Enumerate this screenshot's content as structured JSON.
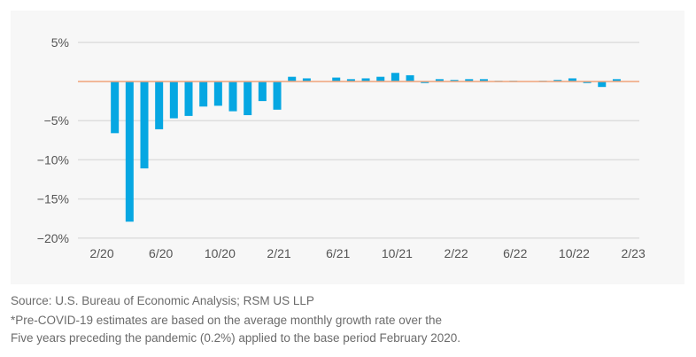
{
  "chart_data": {
    "type": "bar",
    "title": "",
    "xlabel": "",
    "ylabel": "",
    "ylim": [
      -20,
      5
    ],
    "yticks": [
      5,
      0,
      -5,
      -10,
      -15,
      -20
    ],
    "ytick_labels": [
      "5%",
      "",
      "−5%",
      "−10%",
      "−15%",
      "−20%"
    ],
    "grid": true,
    "categories": [
      "2/20",
      "3/20",
      "4/20",
      "5/20",
      "6/20",
      "7/20",
      "8/20",
      "9/20",
      "10/20",
      "11/20",
      "12/20",
      "1/21",
      "2/21",
      "3/21",
      "4/21",
      "5/21",
      "6/21",
      "7/21",
      "8/21",
      "9/21",
      "10/21",
      "11/21",
      "12/21",
      "1/22",
      "2/22",
      "3/22",
      "4/22",
      "5/22",
      "6/22",
      "7/22",
      "8/22",
      "9/22",
      "10/22",
      "11/22",
      "12/22",
      "1/23",
      "2/23"
    ],
    "xtick_labels": [
      "2/20",
      "6/20",
      "10/20",
      "2/21",
      "6/21",
      "10/21",
      "2/22",
      "6/22",
      "10/22",
      "2/23"
    ],
    "values": [
      0.0,
      -6.6,
      -17.9,
      -11.1,
      -6.1,
      -4.7,
      -4.4,
      -3.2,
      -3.1,
      -3.8,
      -4.3,
      -2.5,
      -3.6,
      0.6,
      0.4,
      0.0,
      0.5,
      0.3,
      0.4,
      0.6,
      1.1,
      0.8,
      -0.2,
      0.3,
      0.2,
      0.3,
      0.3,
      0.1,
      0.1,
      0.0,
      0.1,
      0.2,
      0.4,
      -0.2,
      -0.7,
      0.3,
      0.0
    ],
    "colors": {
      "bar": "#06a7e2",
      "zero_line": "#f0a47a",
      "grid": "#dedede",
      "panel": "#f7f7f7"
    }
  },
  "notes": {
    "source": "Source: U.S. Bureau of Economic Analysis; RSM US LLP",
    "footnote_line1": "*Pre-COVID-19 estimates are based on the average monthly growth rate over the",
    "footnote_line2": "Five years preceding the pandemic (0.2%) applied to the base period February 2020."
  }
}
